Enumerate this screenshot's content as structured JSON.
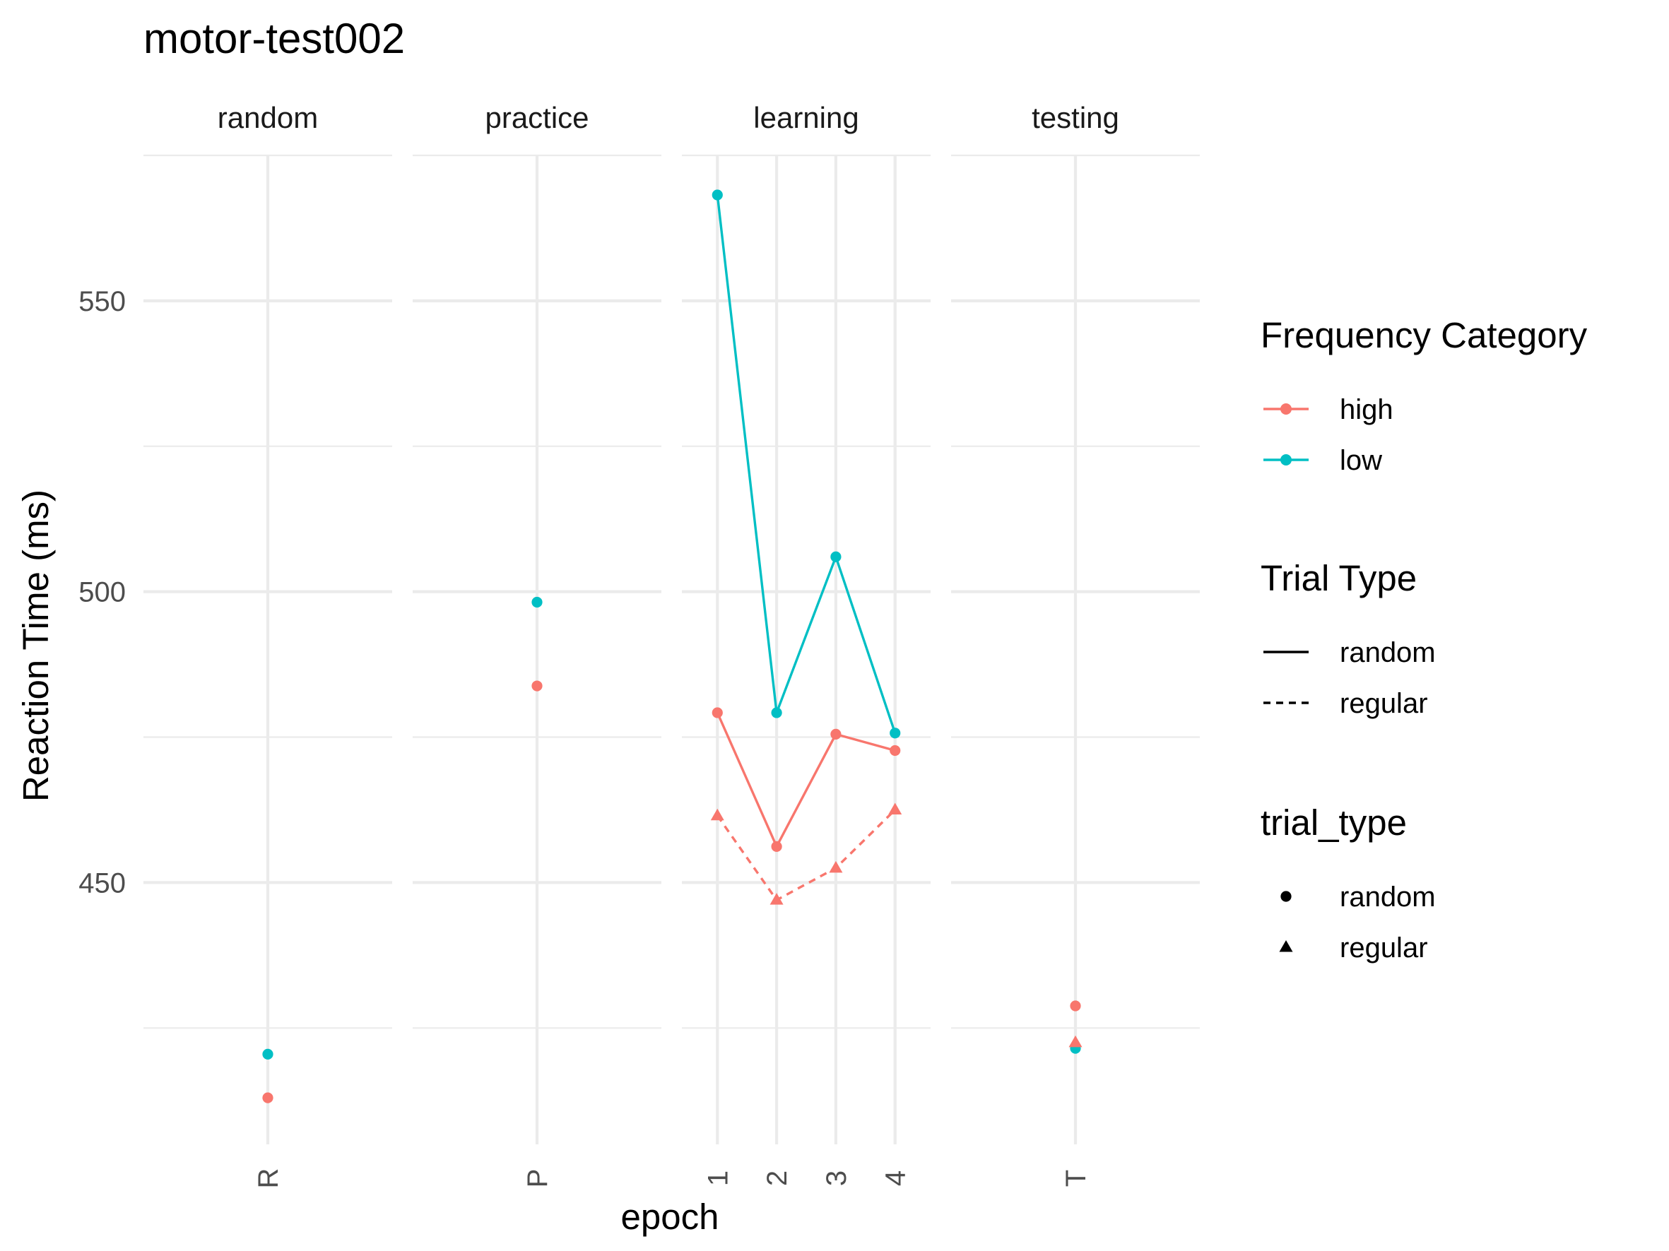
{
  "chart_data": {
    "type": "line",
    "title": "motor-test002",
    "xlabel": "epoch",
    "ylabel": "Reaction Time (ms)",
    "ylim": [
      405,
      575
    ],
    "yticks": [
      450,
      500,
      550
    ],
    "grid": true,
    "legend_position": "right",
    "colors": {
      "high": "#F8766D",
      "low": "#00BFC4"
    },
    "panels": [
      {
        "name": "random",
        "categories": [
          "R"
        ]
      },
      {
        "name": "practice",
        "categories": [
          "P"
        ]
      },
      {
        "name": "learning",
        "categories": [
          "1",
          "2",
          "3",
          "4"
        ]
      },
      {
        "name": "testing",
        "categories": [
          "T"
        ]
      }
    ],
    "series": [
      {
        "panel": "random",
        "freq": "high",
        "trial_type": "random",
        "x": [
          "R"
        ],
        "values": [
          413
        ]
      },
      {
        "panel": "random",
        "freq": "low",
        "trial_type": "random",
        "x": [
          "R"
        ],
        "values": [
          420.5
        ]
      },
      {
        "panel": "practice",
        "freq": "high",
        "trial_type": "random",
        "x": [
          "P"
        ],
        "values": [
          483.8
        ]
      },
      {
        "panel": "practice",
        "freq": "low",
        "trial_type": "random",
        "x": [
          "P"
        ],
        "values": [
          498.2
        ]
      },
      {
        "panel": "learning",
        "freq": "low",
        "trial_type": "random",
        "x": [
          "1",
          "2",
          "3",
          "4"
        ],
        "values": [
          568.2,
          479.2,
          506,
          475.7
        ]
      },
      {
        "panel": "learning",
        "freq": "high",
        "trial_type": "random",
        "x": [
          "1",
          "2",
          "3",
          "4"
        ],
        "values": [
          479.2,
          456.2,
          475.5,
          472.7
        ]
      },
      {
        "panel": "learning",
        "freq": "high",
        "trial_type": "regular",
        "x": [
          "1",
          "2",
          "3",
          "4"
        ],
        "values": [
          461.5,
          447,
          452.5,
          462.5
        ]
      },
      {
        "panel": "testing",
        "freq": "high",
        "trial_type": "random",
        "x": [
          "T"
        ],
        "values": [
          428.8
        ]
      },
      {
        "panel": "testing",
        "freq": "low",
        "trial_type": "random",
        "x": [
          "T"
        ],
        "values": [
          421.5
        ]
      },
      {
        "panel": "testing",
        "freq": "high",
        "trial_type": "regular",
        "x": [
          "T"
        ],
        "values": [
          422.5
        ]
      }
    ],
    "legends": [
      {
        "title": "Frequency Category",
        "kind": "color",
        "items": [
          {
            "label": "high",
            "key": "high"
          },
          {
            "label": "low",
            "key": "low"
          }
        ]
      },
      {
        "title": "Trial Type",
        "kind": "linetype",
        "items": [
          {
            "label": "random",
            "key": "solid"
          },
          {
            "label": "regular",
            "key": "dashed"
          }
        ]
      },
      {
        "title": "trial_type",
        "kind": "shape",
        "items": [
          {
            "label": "random",
            "key": "circle"
          },
          {
            "label": "regular",
            "key": "triangle"
          }
        ]
      }
    ]
  }
}
